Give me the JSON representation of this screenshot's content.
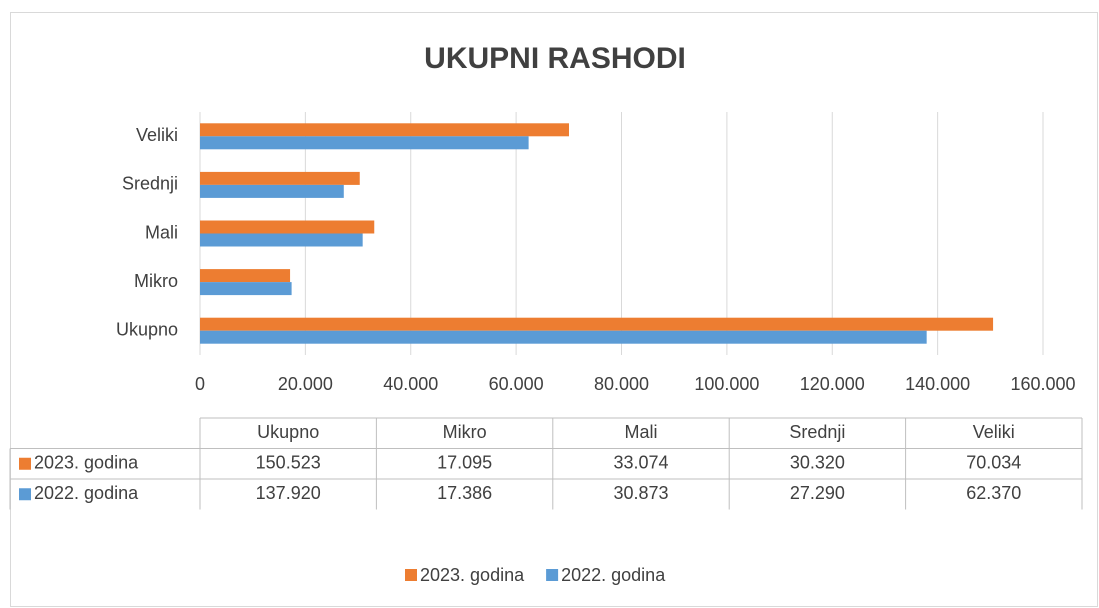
{
  "chart_data": {
    "type": "barh",
    "title": "UKUPNI RASHODI",
    "categories": [
      "Ukupno",
      "Mikro",
      "Mali",
      "Srednji",
      "Veliki"
    ],
    "series": [
      {
        "name": "2023. godina",
        "color": "#ed7d31",
        "values": [
          150523,
          17095,
          33074,
          30320,
          70034
        ],
        "value_labels": [
          "150.523",
          "17.095",
          "33.074",
          "30.320",
          "70.034"
        ]
      },
      {
        "name": "2022. godina",
        "color": "#5b9bd5",
        "values": [
          137920,
          17386,
          30873,
          27290,
          62370
        ],
        "value_labels": [
          "137.920",
          "17.386",
          "30.873",
          "27.290",
          "62.370"
        ]
      }
    ],
    "xlim": [
      0,
      160000
    ],
    "xticks": [
      0,
      {
        "value": 20000,
        "label": "20.000"
      },
      {
        "value": 40000,
        "label": "40.000"
      },
      {
        "value": 60000,
        "label": "60.000"
      },
      {
        "value": 80000,
        "label": "80.000"
      },
      {
        "value": 100000,
        "label": "100.000"
      },
      {
        "value": 120000,
        "label": "120.000"
      },
      {
        "value": 140000,
        "label": "140.000"
      },
      {
        "value": 160000,
        "label": "160.000"
      }
    ],
    "grid": true,
    "legend": "bottom"
  }
}
